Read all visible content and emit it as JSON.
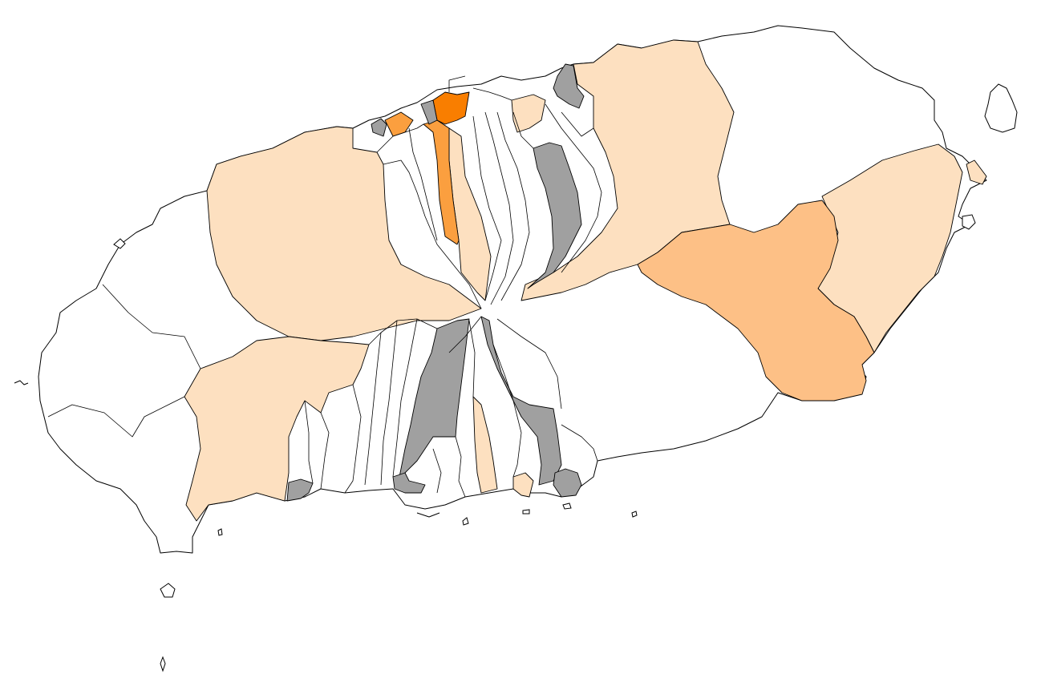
{
  "map": {
    "type": "choropleth",
    "colors": {
      "no_data": "#a0a0a0",
      "level_0": "#ffffff",
      "level_1": "#fde0c0",
      "level_2": "#fdc086",
      "level_3": "#fb9f3f",
      "level_4": "#f97e00",
      "border": "#000000",
      "background": "#ffffff"
    },
    "regions": [
      {
        "id": "r-west-north",
        "level": 1
      },
      {
        "id": "r-west-south",
        "level": 1
      },
      {
        "id": "r-east-north",
        "level": 1
      },
      {
        "id": "r-east-center",
        "level": 2
      },
      {
        "id": "r-east-coast",
        "level": 1
      },
      {
        "id": "r-city-strip",
        "level": 3
      },
      {
        "id": "r-city-core",
        "level": 4
      },
      {
        "id": "r-city-west",
        "level": 3
      },
      {
        "id": "r-south-strip",
        "level": 1
      },
      {
        "id": "r-south-coast-small",
        "level": 1
      },
      {
        "id": "r-north-small",
        "level": 1
      },
      {
        "id": "r-east-tip",
        "level": 1
      },
      {
        "id": "r-nd-north-strip",
        "level": 0
      },
      {
        "id": "r-nd-south-a",
        "level": 0
      },
      {
        "id": "r-nd-south-b",
        "level": 0
      },
      {
        "id": "r-nd-southwest",
        "level": 0
      },
      {
        "id": "r-nd-southeast",
        "level": 0
      },
      {
        "id": "r-nd-north-east",
        "level": 0
      },
      {
        "id": "r-nd-city-a",
        "level": 0
      },
      {
        "id": "r-nd-city-b",
        "level": 0
      }
    ]
  }
}
